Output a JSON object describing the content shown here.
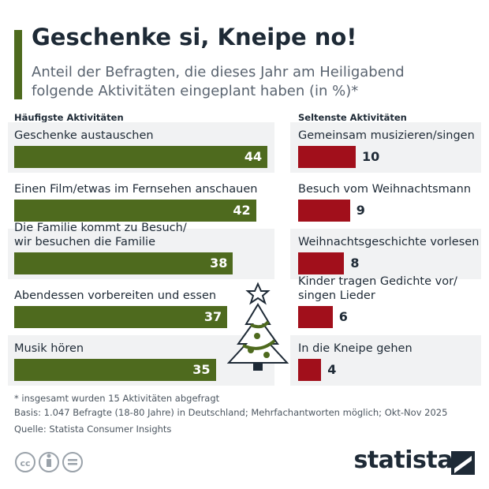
{
  "title": "Geschenke si, Kneipe no!",
  "subtitle": "Anteil der Befragten, die dieses Jahr am Heiligabend folgende Aktivitäten eingeplant haben (in %)*",
  "chart_data": [
    {
      "type": "bar",
      "title": "Häufigste Aktivitäten",
      "categories": [
        "Geschenke austauschen",
        "Einen Film/etwas im Fernsehen anschauen",
        "Die Familie kommt zu Besuch/\nwir besuchen die Familie",
        "Abendessen vorbereiten und essen",
        "Musik hören"
      ],
      "values": [
        44,
        42,
        38,
        37,
        35
      ],
      "color": "#4e6a1e"
    },
    {
      "type": "bar",
      "title": "Seltenste Aktivitäten",
      "categories": [
        "Gemeinsam musizieren/singen",
        "Besuch vom Weihnachtsmann",
        "Weihnachtsgeschichte vorlesen",
        "Kinder tragen Gedichte vor/\nsingen Lieder",
        "In die Kneipe gehen"
      ],
      "values": [
        10,
        9,
        8,
        6,
        4
      ],
      "color": "#a10f1b"
    }
  ],
  "footnotes": [
    "* insgesamt wurden 15 Aktivitäten abgefragt",
    "Basis: 1.047 Befragte (18-80 Jahre) in Deutschland; Mehrfachantworten möglich; Okt-Nov 2025",
    "Quelle: Statista Consumer Insights"
  ],
  "logo": "statista"
}
